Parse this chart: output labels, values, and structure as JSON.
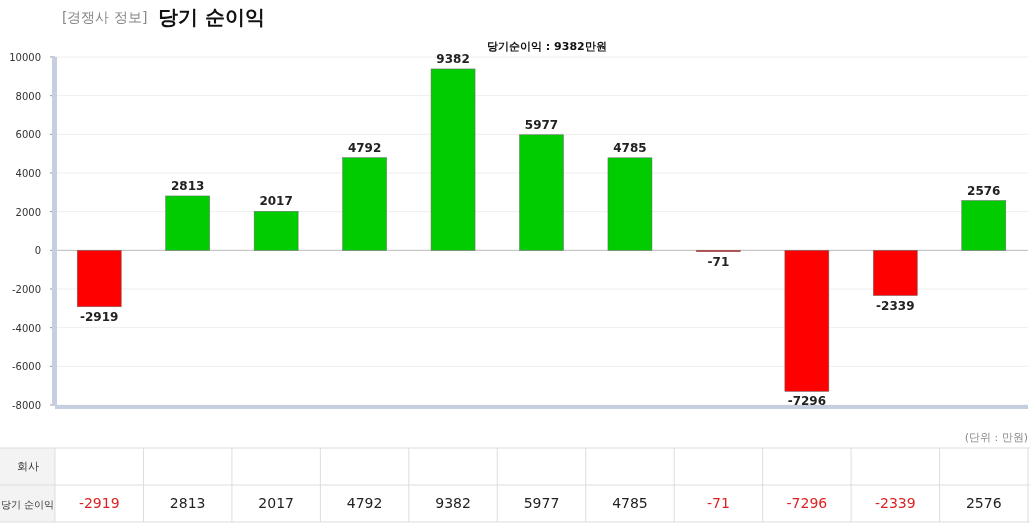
{
  "chart_data": {
    "type": "bar",
    "subtitle": "[경쟁사 정보]",
    "title": "당기 순이익",
    "categories": [
      null,
      null,
      null,
      null,
      null,
      null,
      null,
      null,
      null,
      null,
      null
    ],
    "values": [
      -2919,
      2813,
      2017,
      4792,
      9382,
      5977,
      4785,
      -71,
      -7296,
      -2339,
      2576
    ],
    "colors": [
      "#ff0000",
      "#00cc00",
      "#00cc00",
      "#00cc00",
      "#00cc00",
      "#00cc00",
      "#00cc00",
      "#ff0000",
      "#ff0000",
      "#ff0000",
      "#00cc00"
    ],
    "ylim": [
      -8000,
      10000
    ],
    "yticks": [
      -8000,
      -6000,
      -4000,
      -2000,
      0,
      2000,
      4000,
      6000,
      8000,
      10000
    ],
    "grid": "y",
    "value_labels": [
      "-2919",
      "2813",
      "2017",
      "4792",
      "9382",
      "5977",
      "4785",
      "-71",
      "-7296",
      "-2339",
      "2576"
    ],
    "annotations": [
      "당기순이익 : 9382만원",
      "(단위 : 만원)",
      "회사",
      "당기 순이익",
      "-2919",
      "2813",
      "2017",
      "4792",
      "9382",
      "5977",
      "4785",
      "-71",
      "-7296",
      "-2339",
      "2576"
    ]
  }
}
